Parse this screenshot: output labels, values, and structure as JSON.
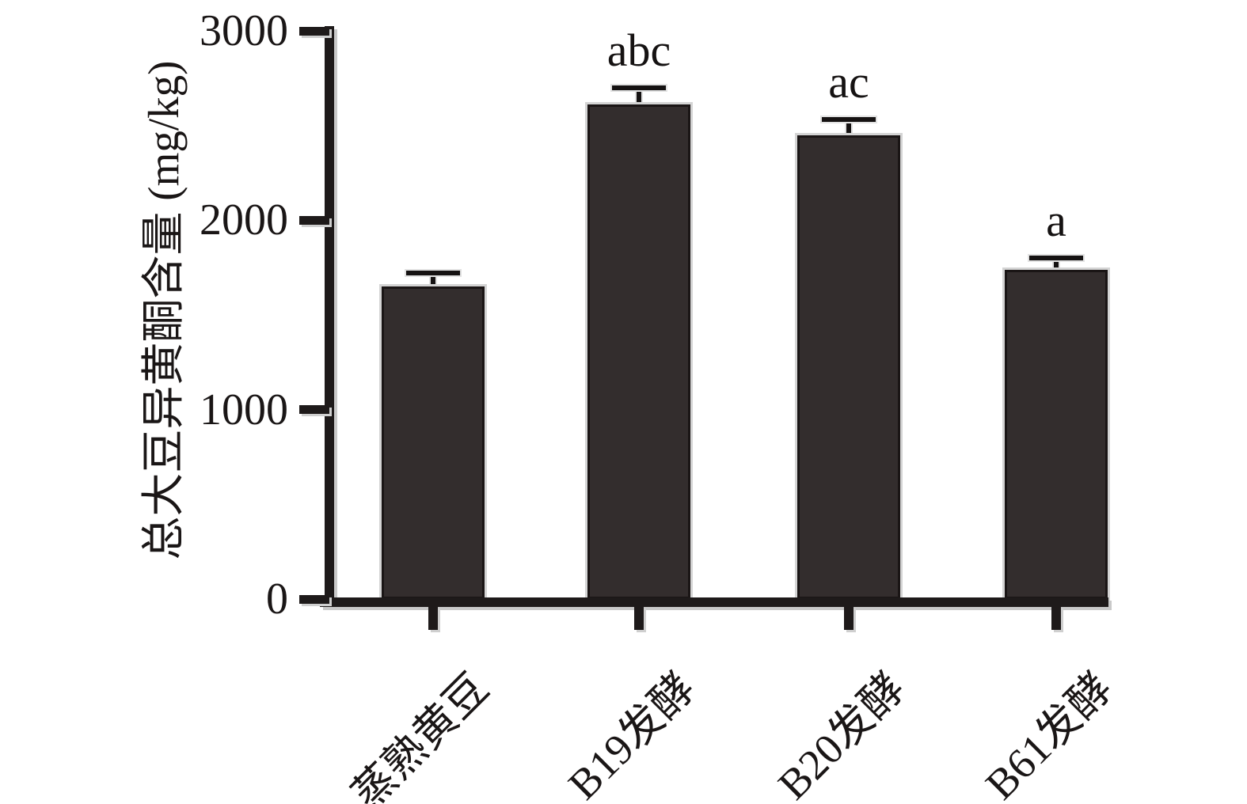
{
  "chart_data": {
    "type": "bar",
    "title": "",
    "xlabel": "",
    "ylabel": "总大豆异黄酮含量 (mg/kg)",
    "categories": [
      "蒸熟黄豆",
      "B19发酵",
      "B20发酵",
      "B61发酵"
    ],
    "values": [
      1650,
      2610,
      2450,
      1740
    ],
    "error_upper": [
      70,
      90,
      80,
      60
    ],
    "sig_letters": [
      "",
      "abc",
      "ac",
      "a"
    ],
    "yticks": [
      0,
      1000,
      2000,
      3000
    ],
    "ylim": [
      0,
      3000
    ],
    "grid": false,
    "legend": "none",
    "colors": {
      "bar_fill": "#332d2d",
      "bar_border": "#1a1515",
      "axis": "#1e1a1a",
      "text": "#1a1616",
      "shadow": "#c9c9c9",
      "background": "#ffffff"
    }
  }
}
